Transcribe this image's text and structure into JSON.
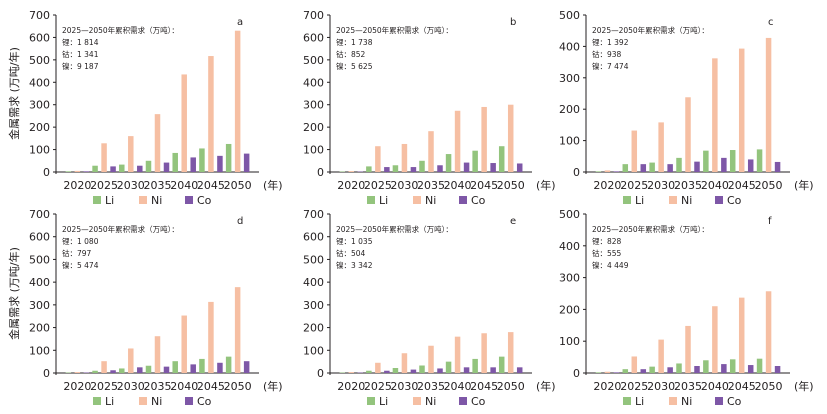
{
  "colors": {
    "Li": "#93c47d",
    "Ni": "#f6bfa3",
    "Co": "#7e57a7",
    "axis": "#231f20"
  },
  "chart_data": [
    {
      "type": "bar",
      "panel_letter": "a",
      "categories": [
        "2020",
        "2025",
        "2030",
        "2035",
        "2040",
        "2045",
        "2050"
      ],
      "x_unit": "(年)",
      "ylabel": "金属需求 (万吨/年)",
      "ylim": [
        0,
        700
      ],
      "yticks": [
        "0",
        "100",
        "200",
        "300",
        "400",
        "500",
        "600",
        "700"
      ],
      "series": [
        {
          "name": "Li",
          "values": [
            3,
            28,
            33,
            50,
            85,
            105,
            125
          ]
        },
        {
          "name": "Ni",
          "values": [
            5,
            128,
            160,
            258,
            435,
            517,
            630
          ]
        },
        {
          "name": "Co",
          "values": [
            3,
            25,
            28,
            42,
            65,
            72,
            82
          ]
        }
      ],
      "annotation": {
        "title": "2025—2050年累积需求（万吨）：",
        "lines": [
          "锂：1 814",
          "钴：1 341",
          "镍：9 187"
        ]
      },
      "legend": "bottom"
    },
    {
      "type": "bar",
      "panel_letter": "b",
      "categories": [
        "2020",
        "2025",
        "2030",
        "2035",
        "2040",
        "2045",
        "2050"
      ],
      "x_unit": "(年)",
      "ylabel": "",
      "ylim": [
        0,
        700
      ],
      "yticks": [
        "0",
        "100",
        "200",
        "300",
        "400",
        "500",
        "600",
        "700"
      ],
      "series": [
        {
          "name": "Li",
          "values": [
            2,
            25,
            30,
            50,
            80,
            95,
            115
          ]
        },
        {
          "name": "Ni",
          "values": [
            4,
            115,
            125,
            182,
            273,
            290,
            300
          ]
        },
        {
          "name": "Co",
          "values": [
            2,
            22,
            22,
            30,
            42,
            40,
            38
          ]
        }
      ],
      "annotation": {
        "title": "2025—2050年累积需求（万吨）：",
        "lines": [
          "锂：1 738",
          "钴：852",
          "镍：5 625"
        ]
      },
      "legend": "bottom"
    },
    {
      "type": "bar",
      "panel_letter": "c",
      "categories": [
        "2020",
        "2025",
        "2030",
        "2035",
        "2040",
        "2045",
        "2050"
      ],
      "x_unit": "(年)",
      "ylabel": "",
      "ylim": [
        0,
        500
      ],
      "yticks": [
        "0",
        "100",
        "200",
        "300",
        "400",
        "500"
      ],
      "series": [
        {
          "name": "Li",
          "values": [
            2,
            25,
            30,
            45,
            68,
            70,
            72
          ]
        },
        {
          "name": "Ni",
          "values": [
            5,
            132,
            158,
            238,
            362,
            393,
            427
          ]
        },
        {
          "name": "Co",
          "values": [
            2,
            25,
            25,
            33,
            45,
            40,
            32
          ]
        }
      ],
      "annotation": {
        "title": "2025—2050年累积需求（万吨）：",
        "lines": [
          "锂：1 392",
          "钴：938",
          "镍：7 474"
        ]
      },
      "legend": "bottom"
    },
    {
      "type": "bar",
      "panel_letter": "d",
      "categories": [
        "2020",
        "2025",
        "2030",
        "2035",
        "2040",
        "2045",
        "2050"
      ],
      "x_unit": "(年)",
      "ylabel": "金属需求 (万吨/年)",
      "ylim": [
        0,
        700
      ],
      "yticks": [
        "0",
        "100",
        "200",
        "300",
        "400",
        "500",
        "600",
        "700"
      ],
      "series": [
        {
          "name": "Li",
          "values": [
            2,
            10,
            20,
            32,
            52,
            62,
            72
          ]
        },
        {
          "name": "Ni",
          "values": [
            4,
            52,
            108,
            162,
            253,
            313,
            378
          ]
        },
        {
          "name": "Co",
          "values": [
            2,
            12,
            25,
            28,
            38,
            45,
            52
          ]
        }
      ],
      "annotation": {
        "title": "2025—2050年累积需求（万吨）：",
        "lines": [
          "锂：1 080",
          "钴：797",
          "镍：5 474"
        ]
      },
      "legend": "bottom"
    },
    {
      "type": "bar",
      "panel_letter": "e",
      "categories": [
        "2020",
        "2025",
        "2030",
        "2035",
        "2040",
        "2045",
        "2050"
      ],
      "x_unit": "(年)",
      "ylabel": "",
      "ylim": [
        0,
        700
      ],
      "yticks": [
        "0",
        "100",
        "200",
        "300",
        "400",
        "500",
        "600",
        "700"
      ],
      "series": [
        {
          "name": "Li",
          "values": [
            2,
            10,
            22,
            33,
            50,
            62,
            72
          ]
        },
        {
          "name": "Ni",
          "values": [
            4,
            45,
            87,
            120,
            160,
            175,
            180
          ]
        },
        {
          "name": "Co",
          "values": [
            2,
            10,
            15,
            20,
            25,
            25,
            25
          ]
        }
      ],
      "annotation": {
        "title": "2025—2050年累积需求（万吨）：",
        "lines": [
          "锂：1 035",
          "钴：504",
          "镍：3 342"
        ]
      },
      "legend": "bottom"
    },
    {
      "type": "bar",
      "panel_letter": "f",
      "categories": [
        "2020",
        "2025",
        "2030",
        "2035",
        "2040",
        "2045",
        "2050"
      ],
      "x_unit": "(年)",
      "ylabel": "",
      "ylim": [
        0,
        500
      ],
      "yticks": [
        "0",
        "100",
        "200",
        "300",
        "400",
        "500"
      ],
      "series": [
        {
          "name": "Li",
          "values": [
            2,
            12,
            20,
            30,
            40,
            43,
            45
          ]
        },
        {
          "name": "Ni",
          "values": [
            4,
            52,
            105,
            148,
            210,
            237,
            257
          ]
        },
        {
          "name": "Co",
          "values": [
            2,
            12,
            18,
            22,
            28,
            25,
            22
          ]
        }
      ],
      "annotation": {
        "title": "2025—2050年累积需求（万吨）：",
        "lines": [
          "锂：828",
          "钴：555",
          "镍：4 449"
        ]
      },
      "legend": "bottom"
    }
  ]
}
